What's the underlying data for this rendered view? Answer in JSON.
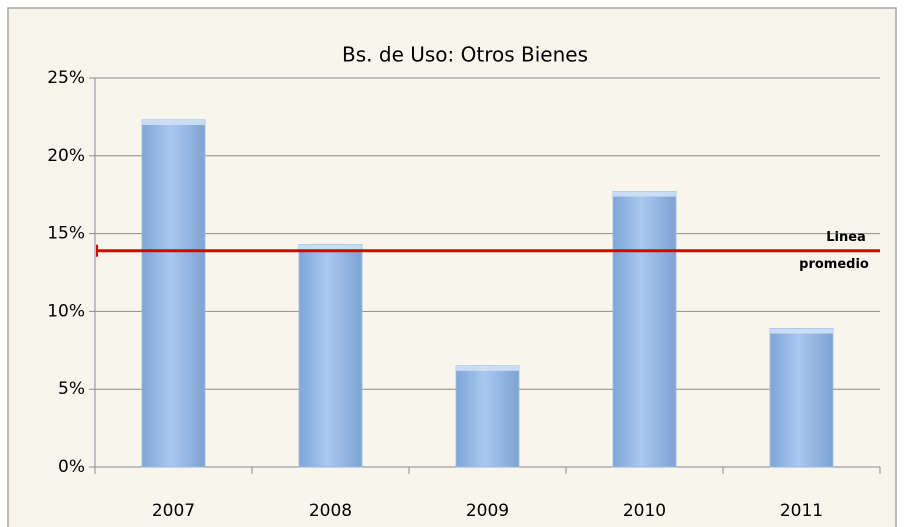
{
  "chart_data": {
    "type": "bar",
    "title": "Bs. de Uso: Otros Bienes",
    "categories": [
      "2007",
      "2008",
      "2009",
      "2010",
      "2011"
    ],
    "values": [
      22.3,
      14.3,
      6.5,
      17.7,
      8.9
    ],
    "color": "#95b8e3",
    "ylim": [
      0,
      25
    ],
    "yticks": [
      {
        "value": 0,
        "label": "0%"
      },
      {
        "value": 5,
        "label": "5%"
      },
      {
        "value": 10,
        "label": "10%"
      },
      {
        "value": 15,
        "label": "15%"
      },
      {
        "value": 20,
        "label": "20%"
      },
      {
        "value": 25,
        "label": "25%"
      }
    ],
    "grid": true,
    "reference_line": {
      "value": 13.9,
      "color": "#e00000",
      "label": [
        "Linea",
        "promedio"
      ]
    }
  }
}
